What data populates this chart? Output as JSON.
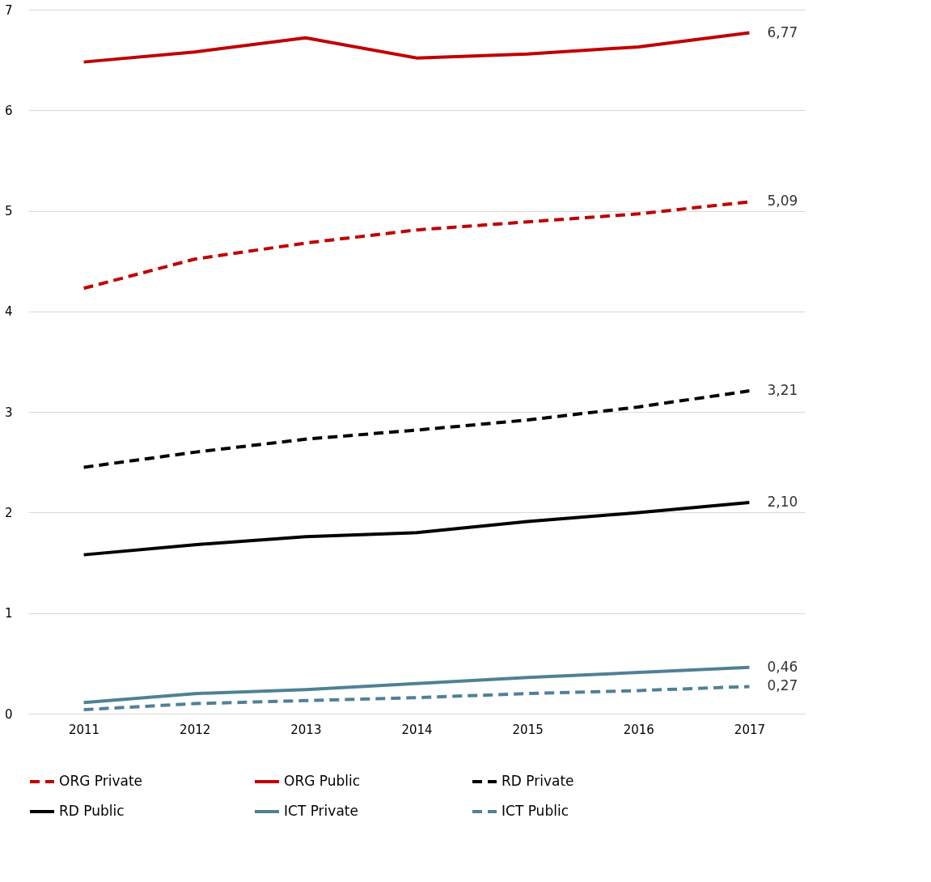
{
  "chart_data": {
    "type": "line",
    "categories": [
      "2011",
      "2012",
      "2013",
      "2014",
      "2015",
      "2016",
      "2017"
    ],
    "series": [
      {
        "name": "ORG Private",
        "color": "#c00000",
        "line_style": "dashed",
        "values": [
          4.23,
          4.52,
          4.68,
          4.81,
          4.89,
          4.97,
          5.09
        ],
        "value_labels": [
          null,
          null,
          null,
          null,
          null,
          null,
          "5,09"
        ]
      },
      {
        "name": "ORG Public",
        "color": "#c00000",
        "line_style": "solid",
        "values": [
          6.48,
          6.58,
          6.72,
          6.52,
          6.56,
          6.63,
          6.77
        ],
        "value_labels": [
          null,
          null,
          null,
          null,
          null,
          null,
          "6,77"
        ]
      },
      {
        "name": "RD Private",
        "color": "#000000",
        "line_style": "dashed",
        "values": [
          2.45,
          2.6,
          2.73,
          2.82,
          2.92,
          3.05,
          3.21
        ],
        "value_labels": [
          null,
          null,
          null,
          null,
          null,
          null,
          "3,21"
        ]
      },
      {
        "name": "RD Public",
        "color": "#000000",
        "line_style": "solid",
        "values": [
          1.58,
          1.68,
          1.76,
          1.8,
          1.91,
          2.0,
          2.1
        ],
        "value_labels": [
          null,
          null,
          null,
          null,
          null,
          null,
          "2,10"
        ]
      },
      {
        "name": "ICT Private",
        "color": "#4f8194",
        "line_style": "solid",
        "values": [
          0.11,
          0.2,
          0.24,
          0.3,
          0.36,
          0.41,
          0.46
        ],
        "value_labels": [
          null,
          null,
          null,
          null,
          null,
          null,
          "0,46"
        ]
      },
      {
        "name": "ICT Public",
        "color": "#4f8194",
        "line_style": "dashed",
        "values": [
          0.04,
          0.1,
          0.13,
          0.16,
          0.2,
          0.23,
          0.27
        ],
        "value_labels": [
          null,
          null,
          null,
          null,
          null,
          null,
          "0,27"
        ]
      }
    ],
    "ylim": [
      0,
      7
    ],
    "yticks": [
      0,
      1,
      2,
      3,
      4,
      5,
      6,
      7
    ],
    "grid": "y",
    "legend": "bottom",
    "marker": "none"
  }
}
